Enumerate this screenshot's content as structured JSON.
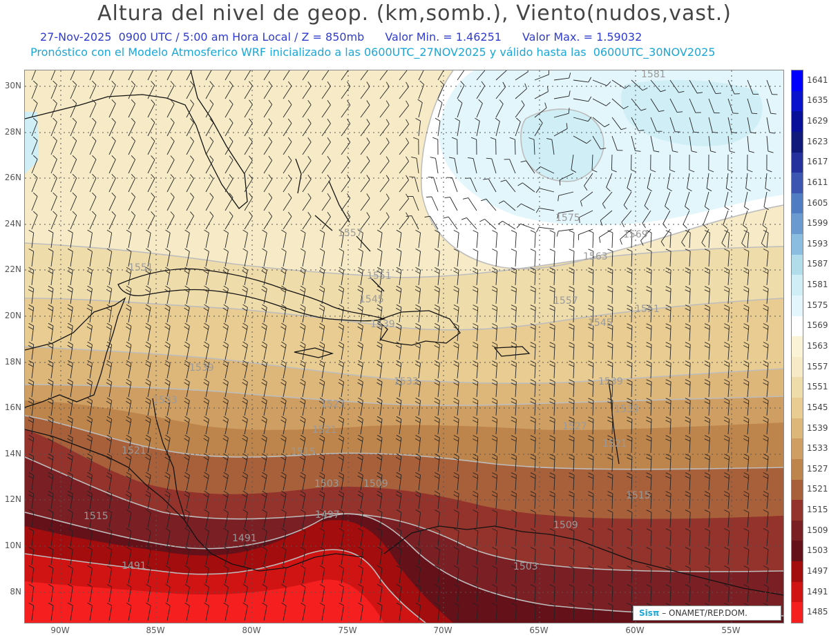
{
  "title": "Altura del nivel de geop. (km,somb.), Viento(nudos,vast.)",
  "subtitle": {
    "datetime": "27-Nov-2025  0900 UTC / 5:00 am Hora Local / Z = 850mb",
    "min_label": "Valor Min. = 1.46251",
    "max_label": "Valor Max. = 1.59032"
  },
  "model_line": "Pronóstico con el Modelo Atmosferico WRF inicializado a las 0600UTC_27NOV2025 y válido hasta las  0600UTC_30NOV2025",
  "lat_labels": [
    "30N",
    "28N",
    "26N",
    "24N",
    "22N",
    "20N",
    "18N",
    "16N",
    "14N",
    "12N",
    "10N",
    "8N"
  ],
  "lon_labels": [
    "90W",
    "85W",
    "80W",
    "75W",
    "70W",
    "65W",
    "60W",
    "55W"
  ],
  "colorbar": {
    "levels": [
      "1641",
      "1635",
      "1629",
      "1623",
      "1617",
      "1611",
      "1605",
      "1599",
      "1593",
      "1587",
      "1581",
      "1575",
      "1569",
      "1563",
      "1557",
      "1551",
      "1545",
      "1539",
      "1533",
      "1527",
      "1521",
      "1515",
      "1509",
      "1503",
      "1497",
      "1491",
      "1485"
    ],
    "colors": [
      "#0000ff",
      "#0a12cc",
      "#08109a",
      "#101a7a",
      "#25319c",
      "#3c55b0",
      "#4f7cc2",
      "#6a9ad0",
      "#8bbde0",
      "#b1dcea",
      "#cfeef6",
      "#e3f6fb",
      "#ffffff",
      "#fbf3d6",
      "#f6ebc6",
      "#efdcab",
      "#e8cc92",
      "#ddb67a",
      "#cf9e62",
      "#bd854c",
      "#a7603a",
      "#93332c",
      "#7a1f24",
      "#65111a",
      "#a40d0d",
      "#d01313",
      "#f51f1f"
    ]
  },
  "contour_labels": [
    {
      "text": "1581"
    },
    {
      "text": "1575"
    },
    {
      "text": "1569"
    },
    {
      "text": "1563"
    },
    {
      "text": "1557"
    },
    {
      "text": "1551"
    },
    {
      "text": "1557"
    },
    {
      "text": "1551"
    },
    {
      "text": "1551"
    },
    {
      "text": "1545"
    },
    {
      "text": "1545"
    },
    {
      "text": "1539"
    },
    {
      "text": "1539"
    },
    {
      "text": "1533"
    },
    {
      "text": "1533"
    },
    {
      "text": "1527"
    },
    {
      "text": "1527"
    },
    {
      "text": "1521"
    },
    {
      "text": "1521"
    },
    {
      "text": "1521"
    },
    {
      "text": "1515"
    },
    {
      "text": "1515"
    },
    {
      "text": "1515"
    },
    {
      "text": "1509"
    },
    {
      "text": "1509"
    },
    {
      "text": "1503"
    },
    {
      "text": "1503"
    },
    {
      "text": "1497"
    },
    {
      "text": "1491"
    },
    {
      "text": "1491"
    },
    {
      "text": "1539"
    },
    {
      "text": "1533"
    }
  ],
  "credit": {
    "brand": "Sisπ",
    "text": "– ONAMET/REP.DOM."
  }
}
